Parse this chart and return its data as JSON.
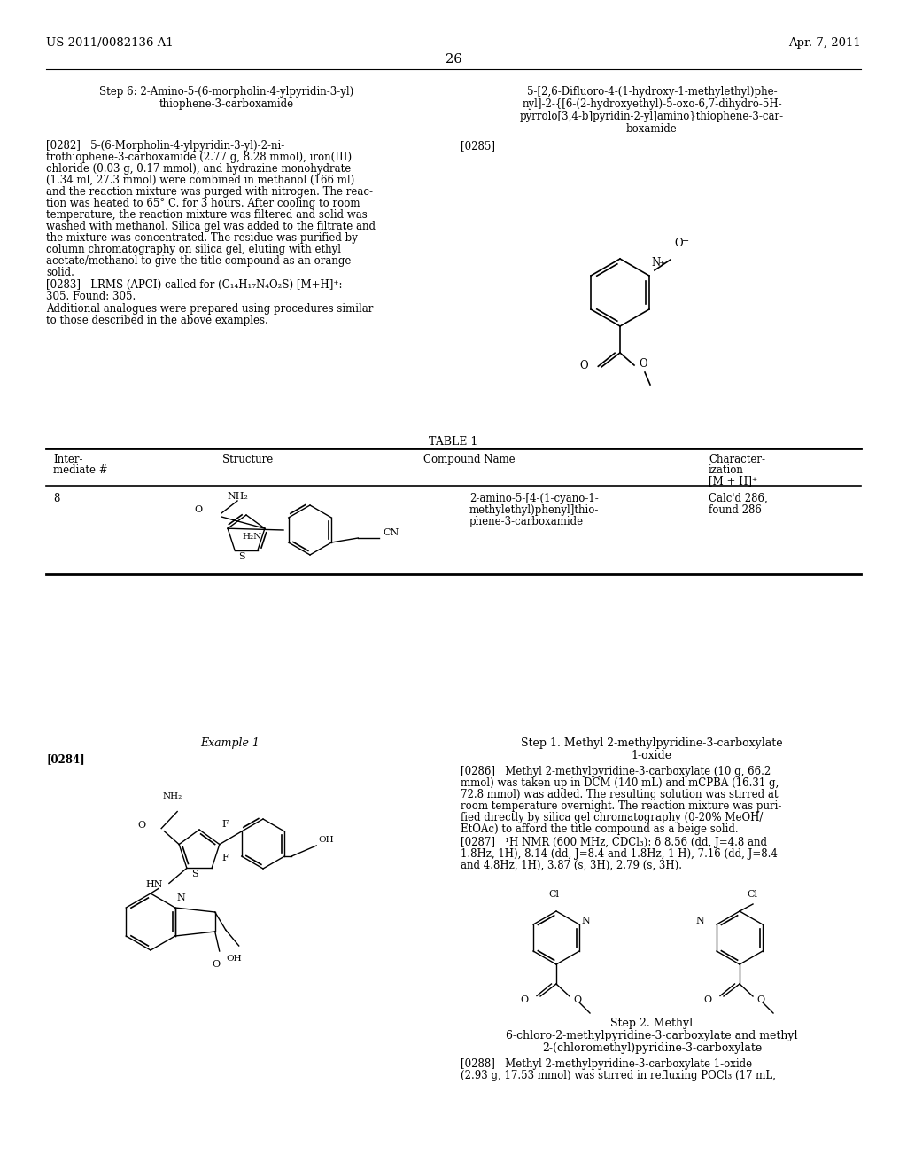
{
  "bg": "#ffffff",
  "header_left": "US 2011/0082136 A1",
  "header_right": "Apr. 7, 2011",
  "page_num": "26",
  "left_title_line1": "Step 6: 2-Amino-5-(6-morpholin-4-ylpyridin-3-yl)",
  "left_title_line2": "thiophene-3-carboxamide",
  "right_title_line1": "5-[2,6-Difluoro-4-(1-hydroxy-1-methylethyl)phe-",
  "right_title_line2": "nyl]-2-{[6-(2-hydroxyethyl)-5-oxo-6,7-dihydro-5H-",
  "right_title_line3": "pyrrolo[3,4-b]pyridin-2-yl]amino}thiophene-3-car-",
  "right_title_line4": "boxamide",
  "p0282_lines": [
    "[0282]   5-(6-Morpholin-4-ylpyridin-3-yl)-2-ni-",
    "trothiophene-3-carboxamide (2.77 g, 8.28 mmol), iron(III)",
    "chloride (0.03 g, 0.17 mmol), and hydrazine monohydrate",
    "(1.34 ml, 27.3 mmol) were combined in methanol (166 ml)",
    "and the reaction mixture was purged with nitrogen. The reac-",
    "tion was heated to 65° C. for 3 hours. After cooling to room",
    "temperature, the reaction mixture was filtered and solid was",
    "washed with methanol. Silica gel was added to the filtrate and",
    "the mixture was concentrated. The residue was purified by",
    "column chromatography on silica gel, eluting with ethyl",
    "acetate/methanol to give the title compound as an orange",
    "solid."
  ],
  "p0283_lines": [
    "[0283]   LRMS (APCI) called for (C₁₄H₁₇N₄O₂S) [M+H]⁺:",
    "305. Found: 305."
  ],
  "p0283b_lines": [
    "Additional analogues were prepared using procedures similar",
    "to those described in the above examples."
  ],
  "p0285": "[0285]",
  "table_title": "TABLE 1",
  "tbl_h1": "Inter-",
  "tbl_h1b": "mediate #",
  "tbl_h2": "Structure",
  "tbl_h3": "Compound Name",
  "tbl_h4a": "Character-",
  "tbl_h4b": "ization",
  "tbl_h4c": "[M + H]⁺",
  "tbl_r_num": "8",
  "tbl_r_name1": "2-amino-5-[4-(1-cyano-1-",
  "tbl_r_name2": "methylethyl)phenyl]thio-",
  "tbl_r_name3": "phene-3-carboxamide",
  "tbl_r_char1": "Calc'd 286,",
  "tbl_r_char2": "found 286",
  "ex1_title": "Example 1",
  "p0284": "[0284]",
  "step1_title1": "Step 1. Methyl 2-methylpyridine-3-carboxylate",
  "step1_title2": "1-oxide",
  "p0286_lines": [
    "[0286]   Methyl 2-methylpyridine-3-carboxylate (10 g, 66.2",
    "mmol) was taken up in DCM (140 mL) and mCPBA (16.31 g,",
    "72.8 mmol) was added. The resulting solution was stirred at",
    "room temperature overnight. The reaction mixture was puri-",
    "fied directly by silica gel chromatography (0-20% MeOH/",
    "EtOAc) to afford the title compound as a beige solid."
  ],
  "p0287_lines": [
    "[0287]   ¹H NMR (600 MHz, CDCl₃): δ 8.56 (dd, J=4.8 and",
    "1.8Hz, 1H), 8.14 (dd, J=8.4 and 1.8Hz, 1 H), 7.16 (dd, J=8.4",
    "and 4.8Hz, 1H), 3.87 (s, 3H), 2.79 (s, 3H)."
  ],
  "step2_title1": "Step 2. Methyl",
  "step2_title2": "6-chloro-2-methylpyridine-3-carboxylate and methyl",
  "step2_title3": "2-(chloromethyl)pyridine-3-carboxylate",
  "p0288_lines": [
    "[0288]   Methyl 2-methylpyridine-3-carboxylate 1-oxide",
    "(2.93 g, 17.53 mmol) was stirred in refluxing POCl₃ (17 mL,"
  ]
}
